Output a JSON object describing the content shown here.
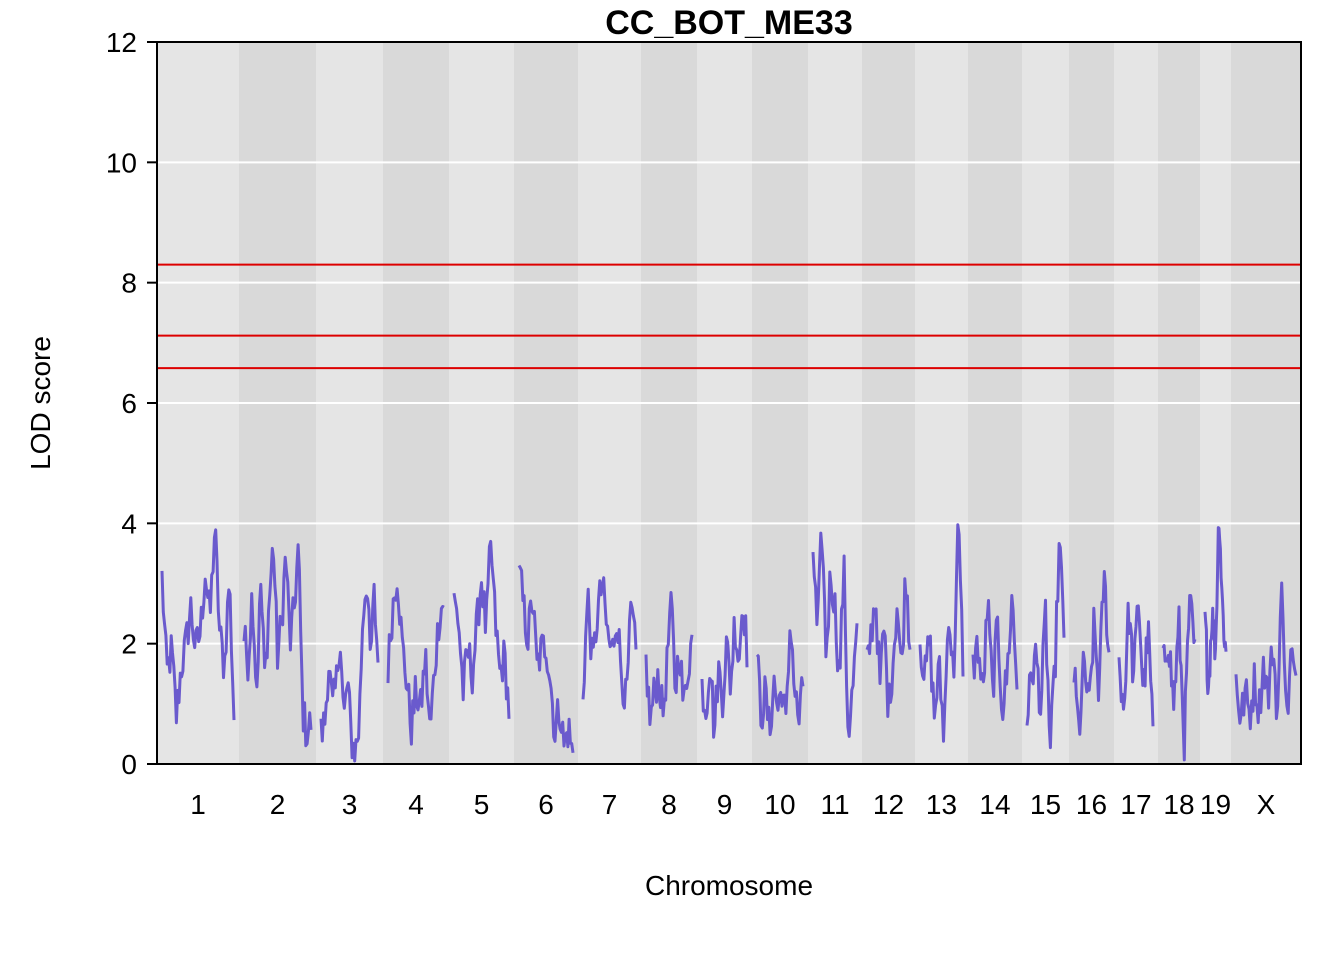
{
  "chart_data": {
    "type": "line",
    "title": "CC_BOT_ME33",
    "xlabel": "Chromosome",
    "ylabel": "LOD score",
    "ylim": [
      0,
      12
    ],
    "yticks": [
      0,
      2,
      4,
      6,
      8,
      10,
      12
    ],
    "grid": true,
    "colors": {
      "lod_curve": "#6a5acd",
      "threshold": "#dd0000",
      "band_light": "#e5e5e5",
      "band_dark": "#d9d9d9",
      "gridline": "#ffffff"
    },
    "thresholds": [
      8.3,
      7.12,
      6.58
    ],
    "chromosomes": [
      {
        "label": "1",
        "peak": 3.95,
        "lod": [
          3.1,
          1.5,
          1.9,
          0.8,
          1.6,
          2.0,
          2.6,
          1.9,
          2.2,
          3.2,
          2.4,
          3.95,
          2.2,
          1.6,
          3.1,
          0.8
        ]
      },
      {
        "label": "2",
        "peak": 3.7,
        "lod": [
          2.1,
          1.7,
          2.9,
          1.2,
          3.0,
          1.4,
          2.7,
          3.7,
          1.8,
          2.4,
          3.5,
          2.0,
          2.6,
          3.6,
          0.9,
          0.5,
          0.7
        ]
      },
      {
        "label": "3",
        "peak": 3.2,
        "lod": [
          0.5,
          0.7,
          1.7,
          0.9,
          1.3,
          2.2,
          0.7,
          1.4,
          0.4,
          0.2,
          0.6,
          2.5,
          3.1,
          1.7,
          2.8,
          1.7
        ]
      },
      {
        "label": "4",
        "peak": 3.25,
        "lod": [
          1.6,
          2.6,
          3.2,
          2.0,
          1.4,
          0.6,
          1.2,
          0.9,
          1.8,
          0.5,
          1.6,
          2.5,
          2.7
        ]
      },
      {
        "label": "5",
        "peak": 3.7,
        "lod": [
          2.7,
          2.4,
          1.2,
          1.9,
          1.5,
          2.3,
          3.1,
          2.2,
          3.7,
          2.4,
          1.5,
          1.8,
          0.9
        ]
      },
      {
        "label": "6",
        "peak": 3.3,
        "lod": [
          3.3,
          2.6,
          2.1,
          2.8,
          1.6,
          1.9,
          2.0,
          1.4,
          0.5,
          1.0,
          0.3,
          0.6,
          0.1
        ]
      },
      {
        "label": "7",
        "peak": 3.1,
        "lod": [
          1.2,
          2.8,
          1.6,
          2.5,
          3.0,
          2.2,
          1.8,
          2.5,
          1.5,
          1.0,
          2.6,
          1.8
        ]
      },
      {
        "label": "8",
        "peak": 2.85,
        "lod": [
          1.7,
          0.7,
          1.2,
          1.5,
          0.8,
          1.6,
          2.85,
          1.2,
          2.0,
          0.9,
          1.6,
          2.1
        ]
      },
      {
        "label": "9",
        "peak": 2.8,
        "lod": [
          1.3,
          0.9,
          1.8,
          0.5,
          1.6,
          1.1,
          2.0,
          1.3,
          2.4,
          1.7,
          2.8,
          1.9
        ]
      },
      {
        "label": "10",
        "peak": 2.5,
        "lod": [
          1.8,
          0.8,
          1.2,
          0.5,
          1.4,
          0.9,
          1.3,
          0.6,
          2.5,
          1.2,
          0.7,
          1.3
        ]
      },
      {
        "label": "11",
        "peak": 3.95,
        "lod": [
          3.6,
          2.1,
          3.95,
          1.8,
          3.2,
          2.6,
          1.4,
          3.3,
          0.5,
          1.2,
          2.2
        ]
      },
      {
        "label": "12",
        "peak": 3.2,
        "lod": [
          1.6,
          2.2,
          2.8,
          1.3,
          2.3,
          0.9,
          1.7,
          2.7,
          1.5,
          3.2,
          2.0
        ]
      },
      {
        "label": "13",
        "peak": 4.0,
        "lod": [
          2.1,
          1.4,
          2.1,
          0.8,
          1.6,
          0.5,
          2.6,
          1.4,
          4.0,
          1.7
        ]
      },
      {
        "label": "14",
        "peak": 2.8,
        "lod": [
          1.6,
          2.0,
          1.1,
          2.7,
          1.2,
          2.3,
          0.9,
          1.5,
          2.8,
          1.3
        ]
      },
      {
        "label": "15",
        "peak": 3.7,
        "lod": [
          0.8,
          1.5,
          1.8,
          0.9,
          2.5,
          0.2,
          1.5,
          3.7,
          2.2
        ]
      },
      {
        "label": "16",
        "peak": 3.2,
        "lod": [
          1.5,
          0.5,
          1.7,
          0.9,
          2.3,
          1.2,
          3.2,
          1.8
        ]
      },
      {
        "label": "17",
        "peak": 2.8,
        "lod": [
          1.7,
          0.9,
          2.6,
          1.4,
          2.8,
          1.2,
          2.2,
          0.6
        ]
      },
      {
        "label": "18",
        "peak": 2.8,
        "lod": [
          1.6,
          2.1,
          1.0,
          2.3,
          0.4,
          2.8,
          1.8
        ]
      },
      {
        "label": "19",
        "peak": 4.25,
        "lod": [
          2.4,
          1.3,
          2.5,
          1.9,
          4.25,
          2.6,
          1.8
        ]
      },
      {
        "label": "X",
        "peak": 3.1,
        "lod": [
          1.5,
          0.7,
          1.2,
          0.8,
          1.4,
          0.9,
          1.7,
          1.1,
          2.0,
          0.8,
          3.1,
          0.7,
          1.9,
          1.2
        ]
      }
    ]
  }
}
